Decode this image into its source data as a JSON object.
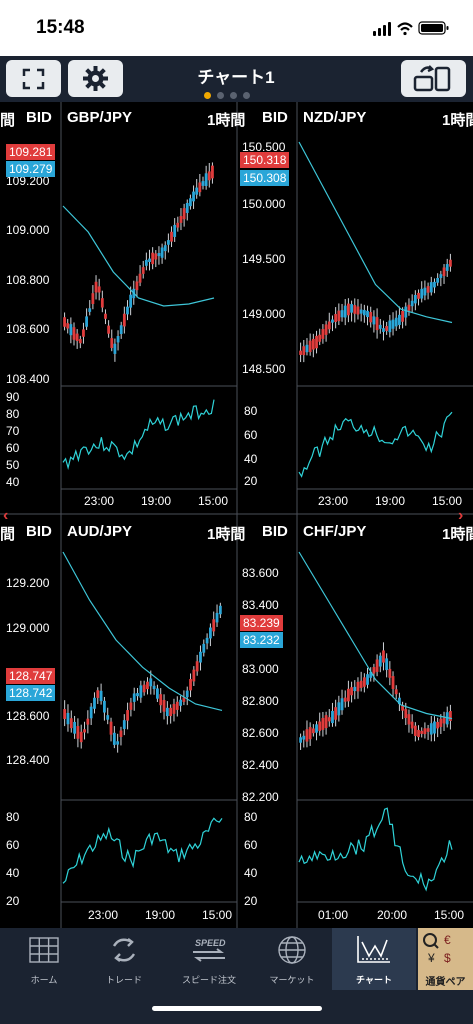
{
  "status_bar": {
    "time": "15:48"
  },
  "header": {
    "title": "チャート1",
    "page_count": 4,
    "active_page": 0
  },
  "common": {
    "bid_label": "BID"
  },
  "panels": [
    {
      "pair": "GBP/JPY",
      "timeframe": "1時間",
      "price_axis": [
        "150.500",
        "150.000",
        "149.500",
        "149.000",
        "148.500"
      ],
      "ask": "150.318",
      "bid": "150.308",
      "osc_axis": [
        "80",
        "60",
        "40",
        "20"
      ],
      "time_axis": [
        "23:00",
        "19:00",
        "15:00"
      ]
    },
    {
      "pair": "NZD/JPY",
      "timeframe": "1時間",
      "price_axis": [],
      "ask": "",
      "bid": "",
      "osc_axis": [],
      "time_axis": [
        "23:00",
        "19:00",
        "15:00"
      ]
    },
    {
      "pair": "AUD/JPY",
      "timeframe": "1時間",
      "price_axis": [
        "83.600",
        "83.400",
        "83.000",
        "82.800",
        "82.600",
        "82.400",
        "82.200"
      ],
      "ask": "83.239",
      "bid": "83.232",
      "osc_axis": [
        "80",
        "60",
        "40",
        "20"
      ],
      "time_axis": [
        "23:00",
        "19:00",
        "15:00"
      ]
    },
    {
      "pair": "CHF/JPY",
      "timeframe": "1時間",
      "price_axis": [],
      "ask": "",
      "bid": "",
      "osc_axis": [],
      "time_axis": [
        "01:00",
        "20:00",
        "15:00"
      ]
    }
  ],
  "left_partial": [
    {
      "price_axis": [
        "109.200",
        "109.000",
        "108.800",
        "108.600",
        "108.400"
      ],
      "ask": "109.281",
      "bid": "109.279",
      "osc_axis": [
        "90",
        "80",
        "70",
        "60",
        "50",
        "40"
      ]
    },
    {
      "price_axis": [
        "129.200",
        "129.000",
        "128.600",
        "128.400"
      ],
      "ask": "128.747",
      "bid": "128.742",
      "osc_axis": [
        "80",
        "60",
        "40",
        "20"
      ]
    }
  ],
  "tabs": [
    {
      "label": "ホーム",
      "icon": "grid-icon"
    },
    {
      "label": "トレード",
      "icon": "exchange-icon"
    },
    {
      "label": "スピード注文",
      "icon": "speed-icon"
    },
    {
      "label": "マーケット",
      "icon": "globe-icon"
    },
    {
      "label": "チャート",
      "icon": "chart-icon",
      "active": true
    },
    {
      "label": "通貨ペア",
      "icon": "currency-icon"
    }
  ],
  "colors": {
    "up": "#e03c3c",
    "down": "#2aa6d8",
    "ma": "#3ec6d8",
    "osc": "#2fd3d8",
    "header": "#1b2331"
  }
}
